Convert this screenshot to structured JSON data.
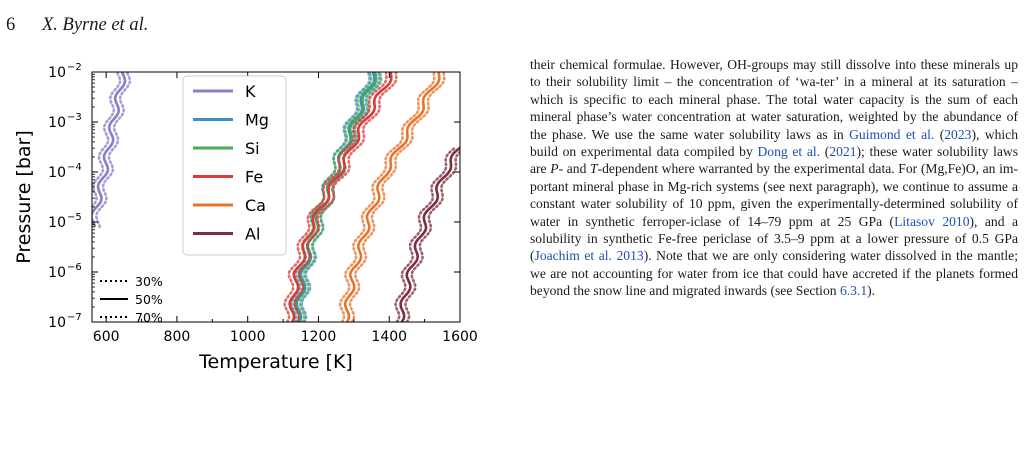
{
  "header": {
    "page_number": "6",
    "authors": "X. Byrne et al."
  },
  "figure": {
    "chart_data": {
      "type": "line",
      "xlabel": "Temperature [K]",
      "ylabel": "Pressure [bar]",
      "xlim": [
        560,
        1600
      ],
      "ylim_log10": [
        -7,
        -2
      ],
      "y_scale": "log",
      "x_ticks": [
        600,
        800,
        1000,
        1200,
        1400,
        1600
      ],
      "x_tick_labels": [
        "600",
        "800",
        "1000",
        "1200",
        "1400",
        "1600"
      ],
      "y_tick_labels": [
        "10",
        "10",
        "10",
        "10",
        "10",
        "10"
      ],
      "y_tick_exponents": [
        "−2",
        "−3",
        "−4",
        "−5",
        "−6",
        "−7"
      ],
      "grid": false,
      "legend_placement": "top-left",
      "series": [
        {
          "name": "K",
          "color": "#8c7cc4",
          "x_at_log10P": [
            [
              -5.1,
              560
            ],
            [
              -4,
              595
            ],
            [
              -3,
              620
            ],
            [
              -2,
              650
            ]
          ]
        },
        {
          "name": "Mg",
          "color": "#3d8ec4",
          "x_at_log10P": [
            [
              -7,
              1140
            ],
            [
              -6,
              1160
            ],
            [
              -5,
              1195
            ],
            [
              -4,
              1250
            ],
            [
              -3,
              1300
            ],
            [
              -2,
              1360
            ]
          ]
        },
        {
          "name": "Si",
          "color": "#4aa85a",
          "x_at_log10P": [
            [
              -7,
              1135
            ],
            [
              -6,
              1155
            ],
            [
              -5,
              1195
            ],
            [
              -4,
              1250
            ],
            [
              -3,
              1305
            ],
            [
              -2,
              1365
            ]
          ]
        },
        {
          "name": "Fe",
          "color": "#d93a3a",
          "x_at_log10P": [
            [
              -7,
              1120
            ],
            [
              -6,
              1140
            ],
            [
              -5,
              1185
            ],
            [
              -4,
              1260
            ],
            [
              -3,
              1330
            ],
            [
              -2,
              1410
            ]
          ]
        },
        {
          "name": "Ca",
          "color": "#e8732a",
          "x_at_log10P": [
            [
              -7,
              1275
            ],
            [
              -6,
              1300
            ],
            [
              -5,
              1340
            ],
            [
              -4,
              1390
            ],
            [
              -3,
              1470
            ],
            [
              -2,
              1545
            ]
          ]
        },
        {
          "name": "Al",
          "color": "#7d2e3c",
          "x_at_log10P": [
            [
              -7,
              1430
            ],
            [
              -6,
              1460
            ],
            [
              -5,
              1500
            ],
            [
              -4,
              1560
            ],
            [
              -3.5,
              1600
            ]
          ]
        }
      ],
      "linestyle_legend": [
        {
          "label": "30%",
          "style": "dotted"
        },
        {
          "label": "50%",
          "style": "solid"
        },
        {
          "label": "70%",
          "style": "dotted"
        }
      ]
    }
  },
  "body": {
    "p1": "their chemical formulae. However, OH-groups may still dissolve into these minerals up to their solubility limit – the concentration of ‘wa-ter’ in a mineral at its saturation – which is specific to each mineral phase. The total water capacity is the sum of each mineral phase’s water concentration at water saturation, weighted by the abundance of the phase. We use the same water solubility laws as in ",
    "ref_guimond": "Guimond et al.",
    "ref_guimond_year": "2023",
    "p2": "), which build on experimental data compiled by ",
    "ref_dong": "Dong et al.",
    "ref_dong_year": "2021",
    "p3": "); these water solubility laws are ",
    "var_P": "P",
    "p4": "- and ",
    "var_T": "T",
    "p5": "-dependent where warranted by the experimental data. For (Mg,Fe)O, an im-portant mineral phase in Mg-rich systems (see next paragraph), we continue to assume a constant water solubility of 10 ppm, given the experimentally-determined solubility of water in synthetic ferroper-iclase of 14–79 ppm at 25 GPa (",
    "ref_litasov": "Litasov 2010",
    "p6": "), and a solubility in synthetic Fe-free periclase of 3.5–9 ppm at a lower pressure of 0.5 GPa (",
    "ref_joachim": "Joachim et al. 2013",
    "p7": "). Note that we are only considering water dissolved in the mantle; we are not accounting for water from ice that could have accreted if the planets formed beyond the snow line and migrated inwards (see Section ",
    "ref_section": "6.3.1",
    "p8": ")."
  }
}
